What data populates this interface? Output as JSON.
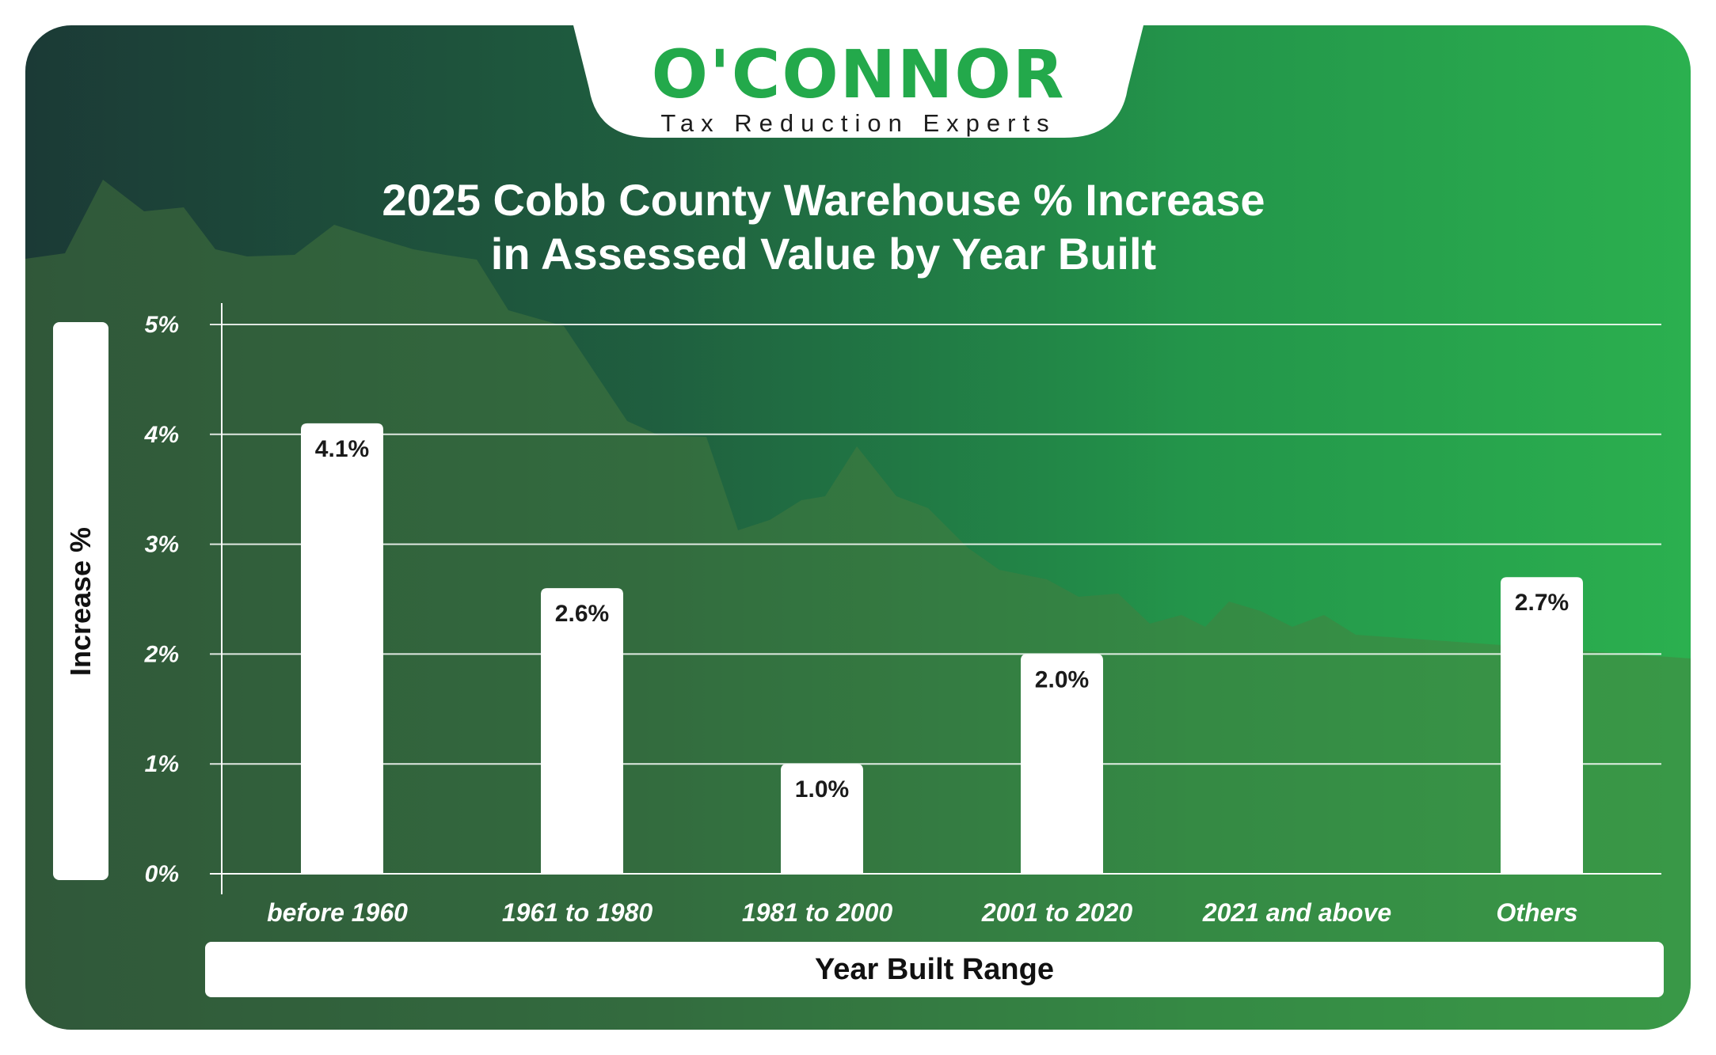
{
  "brand": {
    "name": "O'CONNOR",
    "tagline": "Tax Reduction Experts",
    "accent": "#23a94b"
  },
  "chart_data": {
    "type": "bar",
    "title": "2025 Cobb County Warehouse % Increase in Assessed Value by Year Built",
    "title_lines": [
      "2025 Cobb County Warehouse % Increase",
      "in Assessed Value by Year Built"
    ],
    "xlabel": "Year Built Range",
    "ylabel": "Increase %",
    "categories": [
      "before 1960",
      "1961 to 1980",
      "1981 to 2000",
      "2001 to 2020",
      "2021 and above",
      "Others"
    ],
    "values": [
      4.1,
      2.6,
      1.0,
      2.0,
      null,
      2.7
    ],
    "value_labels": [
      "4.1%",
      "2.6%",
      "1.0%",
      "2.0%",
      "",
      "2.7%"
    ],
    "ylim": [
      0,
      5
    ],
    "yticks": [
      "0%",
      "1%",
      "2%",
      "3%",
      "4%",
      "5%"
    ],
    "grid": true,
    "bar_color": "#ffffff"
  }
}
